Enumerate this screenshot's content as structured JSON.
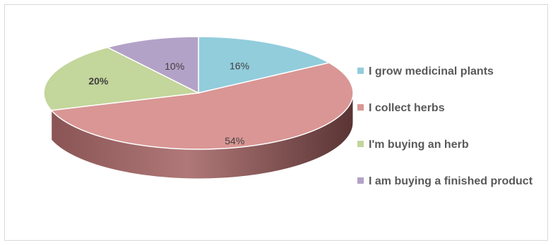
{
  "chart_data": {
    "type": "pie",
    "style": "3d",
    "title": "",
    "categories": [
      "I grow medicinal plants",
      "I collect herbs",
      "I'm buying an herb",
      "I am buying a finished product"
    ],
    "values": [
      16,
      54,
      20,
      10
    ],
    "data_labels": [
      "16%",
      "54%",
      "20%",
      "10%"
    ],
    "colors": [
      "#92cddc",
      "#d99694",
      "#c3d69b",
      "#b3a2c7"
    ],
    "side_colors": [
      "#5f9aa8",
      "#7a4a4a",
      "#889a63",
      "#7d6f91"
    ],
    "legend_position": "right"
  }
}
